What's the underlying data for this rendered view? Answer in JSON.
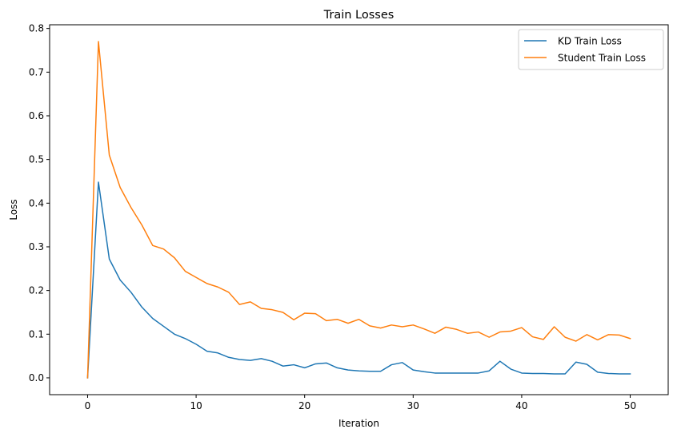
{
  "chart_data": {
    "type": "line",
    "title": "Train Losses",
    "xlabel": "Iteration",
    "ylabel": "Loss",
    "xlim": [
      -3.5,
      53.5
    ],
    "ylim": [
      -0.0385,
      0.8085
    ],
    "xticks": [
      0,
      10,
      20,
      30,
      40,
      50
    ],
    "yticks": [
      0.0,
      0.1,
      0.2,
      0.3,
      0.4,
      0.5,
      0.6,
      0.7,
      0.8
    ],
    "ytick_labels": [
      "0.0",
      "0.1",
      "0.2",
      "0.3",
      "0.4",
      "0.5",
      "0.6",
      "0.7",
      "0.8"
    ],
    "grid": false,
    "legend_position": "top-right",
    "x": [
      0,
      1,
      2,
      3,
      4,
      5,
      6,
      7,
      8,
      9,
      10,
      11,
      12,
      13,
      14,
      15,
      16,
      17,
      18,
      19,
      20,
      21,
      22,
      23,
      24,
      25,
      26,
      27,
      28,
      29,
      30,
      31,
      32,
      33,
      34,
      35,
      36,
      37,
      38,
      39,
      40,
      41,
      42,
      43,
      44,
      45,
      46,
      47,
      48,
      49,
      50
    ],
    "series": [
      {
        "name": "KD Train Loss",
        "color": "#1f77b4",
        "values": [
          0.0,
          0.448,
          0.272,
          0.224,
          0.196,
          0.162,
          0.136,
          0.118,
          0.1,
          0.09,
          0.077,
          0.061,
          0.057,
          0.047,
          0.042,
          0.04,
          0.044,
          0.038,
          0.027,
          0.03,
          0.023,
          0.032,
          0.034,
          0.023,
          0.018,
          0.016,
          0.015,
          0.015,
          0.03,
          0.035,
          0.018,
          0.014,
          0.011,
          0.011,
          0.011,
          0.011,
          0.011,
          0.016,
          0.038,
          0.02,
          0.011,
          0.01,
          0.01,
          0.009,
          0.009,
          0.036,
          0.031,
          0.013,
          0.01,
          0.009,
          0.009
        ]
      },
      {
        "name": "Student Train Loss",
        "color": "#ff7f0e",
        "values": [
          0.0,
          0.77,
          0.51,
          0.436,
          0.39,
          0.35,
          0.303,
          0.295,
          0.275,
          0.244,
          0.23,
          0.216,
          0.208,
          0.196,
          0.168,
          0.174,
          0.159,
          0.156,
          0.15,
          0.133,
          0.148,
          0.147,
          0.131,
          0.134,
          0.125,
          0.134,
          0.119,
          0.114,
          0.121,
          0.117,
          0.121,
          0.112,
          0.102,
          0.116,
          0.111,
          0.102,
          0.105,
          0.093,
          0.105,
          0.107,
          0.115,
          0.094,
          0.088,
          0.117,
          0.093,
          0.084,
          0.099,
          0.087,
          0.099,
          0.098,
          0.09
        ]
      }
    ]
  }
}
